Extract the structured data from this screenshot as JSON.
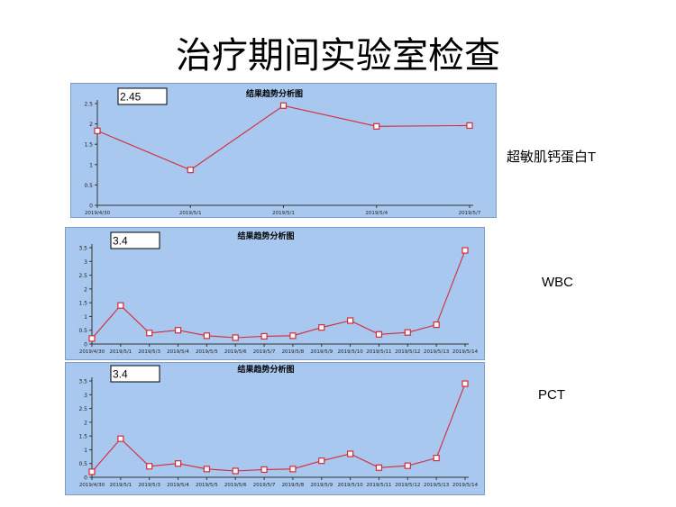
{
  "page": {
    "title": "治疗期间实验室检查"
  },
  "chart_data": [
    {
      "type": "line",
      "title": "结果趋势分析图",
      "value_box": "2.45",
      "side_label": "超敏肌钙蛋白T",
      "categories": [
        "2019/4/30",
        "2019/5/1",
        "2019/5/1",
        "2019/5/4",
        "2019/5/7"
      ],
      "values": [
        1.83,
        0.87,
        2.45,
        1.94,
        1.96
      ],
      "ylim": [
        0,
        2.5
      ],
      "yticks": [
        "0",
        "0.5",
        "1",
        "1.5",
        "2",
        "2.5"
      ],
      "xlabel": "",
      "ylabel": "",
      "grid": false,
      "colors": {
        "background": "#a9c8ef",
        "plot": "#a9c8ef",
        "line": "#d42a3a",
        "marker_fill": "#ffffff",
        "axis": "#333333"
      }
    },
    {
      "type": "line",
      "title": "结果趋势分析图",
      "value_box": "3.4",
      "side_label": "WBC",
      "categories": [
        "2019/4/30",
        "2019/5/1",
        "2019/5/3",
        "2019/5/4",
        "2019/5/5",
        "2019/5/6",
        "2019/5/7",
        "2019/5/8",
        "2019/5/9",
        "2019/5/10",
        "2019/5/11",
        "2019/5/12",
        "2019/5/13",
        "2019/5/14"
      ],
      "values": [
        0.2,
        1.4,
        0.4,
        0.5,
        0.3,
        0.23,
        0.28,
        0.3,
        0.6,
        0.85,
        0.35,
        0.42,
        0.7,
        3.4
      ],
      "ylim": [
        0,
        3.5
      ],
      "yticks": [
        "0",
        "0.5",
        "1",
        "1.5",
        "2",
        "2.5",
        "3",
        "3.5"
      ],
      "xlabel": "",
      "ylabel": "",
      "grid": false,
      "colors": {
        "background": "#a9c8ef",
        "plot": "#a9c8ef",
        "line": "#d42a3a",
        "marker_fill": "#ffffff",
        "axis": "#333333"
      }
    },
    {
      "type": "line",
      "title": "结果趋势分析图",
      "value_box": "3.4",
      "side_label": "PCT",
      "categories": [
        "2019/4/30",
        "2019/5/1",
        "2019/5/3",
        "2019/5/4",
        "2019/5/5",
        "2019/5/6",
        "2019/5/7",
        "2019/5/8",
        "2019/5/9",
        "2019/5/10",
        "2019/5/11",
        "2019/5/12",
        "2019/5/13",
        "2019/5/14"
      ],
      "values": [
        0.2,
        1.4,
        0.4,
        0.5,
        0.3,
        0.23,
        0.28,
        0.3,
        0.6,
        0.85,
        0.35,
        0.42,
        0.7,
        3.4
      ],
      "ylim": [
        0,
        3.5
      ],
      "yticks": [
        "0",
        "0.5",
        "1",
        "1.5",
        "2",
        "2.5",
        "3",
        "3.5"
      ],
      "xlabel": "",
      "ylabel": "",
      "grid": false,
      "colors": {
        "background": "#a9c8ef",
        "plot": "#a9c8ef",
        "line": "#d42a3a",
        "marker_fill": "#ffffff",
        "axis": "#333333"
      }
    }
  ]
}
